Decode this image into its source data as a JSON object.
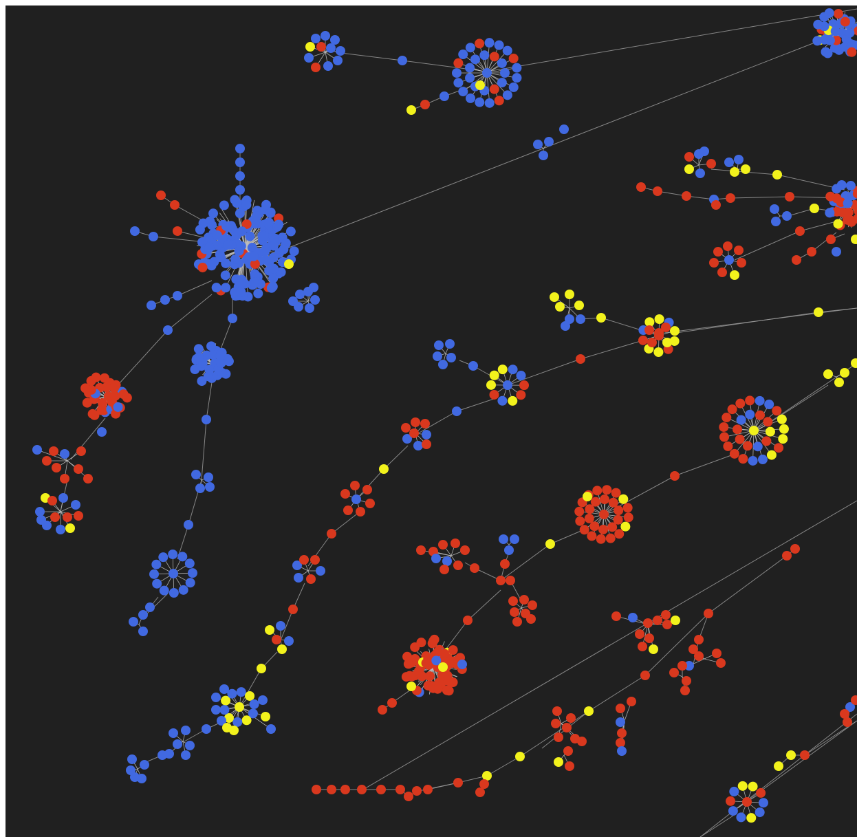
{
  "colors": {
    "background": "#202020",
    "edge": "#9a9a9a",
    "group_a": "#4169e1",
    "group_b": "#d9381e",
    "group_c": "#f2f21c"
  },
  "legend_visible": false,
  "labels_visible": false
}
